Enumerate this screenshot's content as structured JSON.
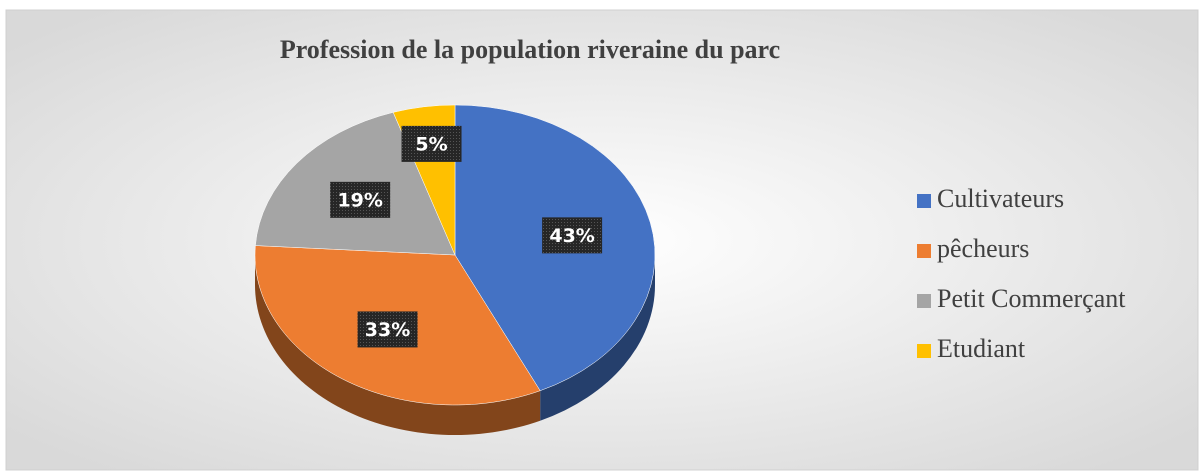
{
  "chart_data": {
    "type": "pie",
    "title": "Profession de la population riveraine du parc",
    "categories": [
      "Cultivateurs",
      "pêcheurs",
      "Petit Commerçant",
      "Etudiant"
    ],
    "values": [
      43,
      33,
      19,
      5
    ],
    "value_labels": [
      "43%",
      "33%",
      "19%",
      "5%"
    ],
    "colors": [
      "#4472c4",
      "#ed7d31",
      "#a5a5a5",
      "#ffc000"
    ],
    "legend": "right"
  }
}
